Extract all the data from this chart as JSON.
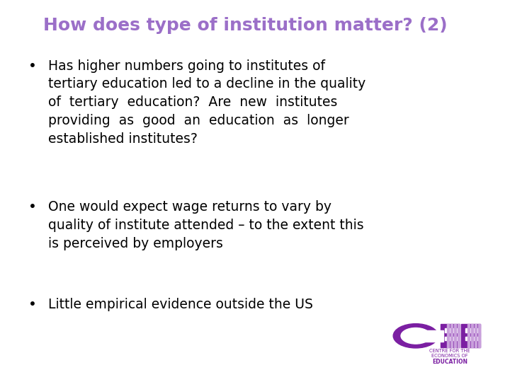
{
  "title": "How does type of institution matter? (2)",
  "title_color": "#9b6fc8",
  "background_color": "#ffffff",
  "bullet1": "Has higher numbers going to institutes of\ntertiary education led to a decline in the quality\nof  tertiary  education?  Are  new  institutes\nproviding  as  good  an  education  as  longer\nestablished institutes?",
  "bullet2": "One would expect wage returns to vary by\nquality of institute attended – to the extent this\nis perceived by employers",
  "bullet3": "Little empirical evidence outside the US",
  "text_color": "#000000",
  "font_size_title": 18,
  "font_size_body": 13.5,
  "logo_color_main": "#7b1fa2",
  "logo_text_color": "#7b1fa2"
}
